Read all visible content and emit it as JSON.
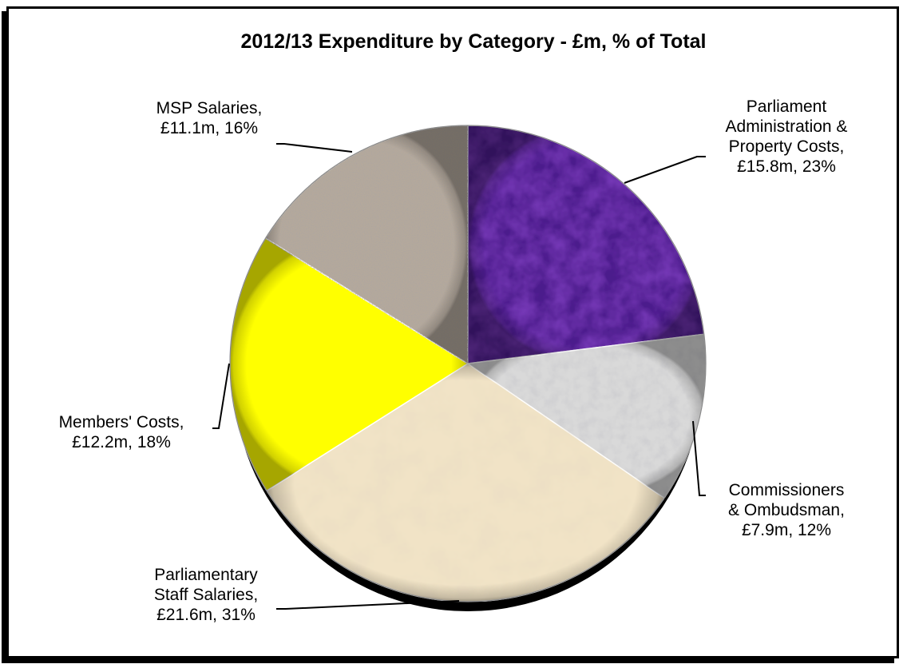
{
  "chart_data": {
    "type": "pie",
    "title": "2012/13 Expenditure by Category - £m, % of Total",
    "unit": "£m",
    "slices": [
      {
        "category": "Parliament Administration & Property Costs",
        "value": 15.8,
        "percent": 23,
        "label_lines": [
          "Parliament",
          "Administration &",
          "Property Costs,",
          "£15.8m, 23%"
        ],
        "color": "#4b1a8c",
        "texture": "purple-marble"
      },
      {
        "category": "Commissioners & Ombudsman",
        "value": 7.9,
        "percent": 12,
        "label_lines": [
          "Commissioners",
          "& Ombudsman,",
          "£7.9m, 12%"
        ],
        "color": "#d9d9d9",
        "texture": "white-marble"
      },
      {
        "category": "Parliamentary Staff Salaries",
        "value": 21.6,
        "percent": 31,
        "label_lines": [
          "Parliamentary",
          "Staff Salaries,",
          "£21.6m, 31%"
        ],
        "color": "#f1e3c6",
        "texture": "parchment"
      },
      {
        "category": "Members' Costs",
        "value": 12.2,
        "percent": 18,
        "label_lines": [
          "Members' Costs,",
          "£12.2m, 18%"
        ],
        "color": "#ffff00",
        "texture": "solid"
      },
      {
        "category": "MSP Salaries",
        "value": 11.1,
        "percent": 16,
        "label_lines": [
          "MSP Salaries,",
          "£11.1m, 16%"
        ],
        "color": "#b5a99b",
        "texture": "granite"
      }
    ],
    "legend": "none"
  }
}
